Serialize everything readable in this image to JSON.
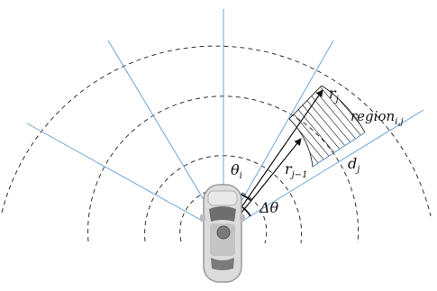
{
  "colors": {
    "background": "#ffffff",
    "ring": "#333333",
    "ray": "#6fa5d8",
    "arrow": "#111111",
    "hatch": "#111111",
    "car_body": "#d0d0d0",
    "car_outline": "#9a9a9a",
    "car_glass": "#6e6e6e"
  },
  "labels": {
    "r_j": {
      "base": "r",
      "sub": "j"
    },
    "region": {
      "base": "region",
      "sub": "i,j"
    },
    "d_j": {
      "base": "d",
      "sub": "j"
    },
    "r_j_minus_1": {
      "base": "r",
      "sub": "j−1"
    },
    "theta_i": {
      "base": "θ",
      "sub": "i"
    },
    "delta_theta": {
      "text": "Δθ"
    }
  },
  "icons": {
    "vehicle": "car-top-view-icon"
  }
}
